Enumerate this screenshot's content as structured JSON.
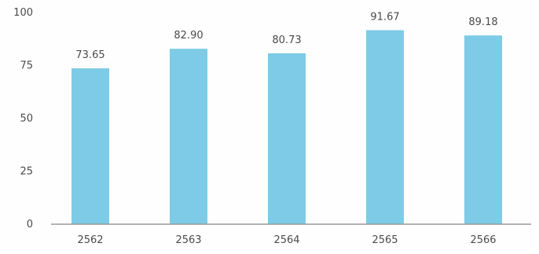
{
  "chart_data": {
    "type": "bar",
    "categories": [
      "2562",
      "2563",
      "2564",
      "2565",
      "2566"
    ],
    "values": [
      73.65,
      82.9,
      80.73,
      91.67,
      89.18
    ],
    "value_labels": [
      "73.65",
      "82.90",
      "80.73",
      "91.67",
      "89.18"
    ],
    "ylim": [
      0,
      100
    ],
    "yticks": [
      0,
      25,
      50,
      75,
      100
    ],
    "ytick_labels": [
      "0",
      "25",
      "50",
      "75",
      "100"
    ],
    "grid": false,
    "title": "",
    "xlabel": "",
    "ylabel": ""
  },
  "colors": {
    "bar": "#7dcbe6",
    "axis": "#9a9a9a",
    "text": "#4a4a4a"
  }
}
